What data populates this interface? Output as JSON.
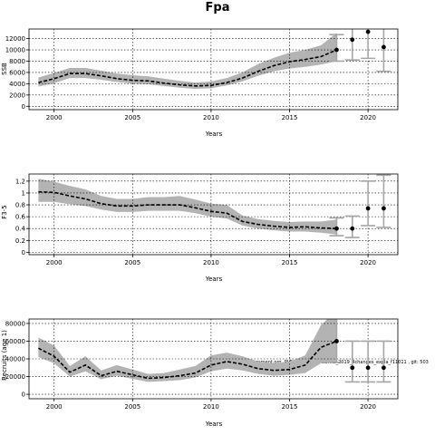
{
  "title": "Fpa",
  "annotation": "stockassessment.org, PLE.27.21-23_WGBFAS_2019_4changes_expla_f11011 , git: 503",
  "colors": {
    "band": "#b3b3b3",
    "line": "#000000",
    "point": "#000000",
    "errorbar": "#a6a6a6",
    "grid": "#000000"
  },
  "chart_data": [
    {
      "type": "line",
      "name": "ssb-panel",
      "ylabel": "SSB",
      "xlabel": "Years",
      "xlim": [
        1998.4,
        2021.9
      ],
      "ylim": [
        -600,
        13700
      ],
      "xticks": [
        2000,
        2005,
        2010,
        2015,
        2020
      ],
      "yticks": [
        0,
        2000,
        4000,
        6000,
        8000,
        10000,
        12000
      ],
      "grid": true,
      "estimate": {
        "x": [
          1999,
          2000,
          2001,
          2002,
          2003,
          2004,
          2005,
          2006,
          2007,
          2008,
          2009,
          2010,
          2011,
          2012,
          2013,
          2014,
          2015,
          2016,
          2017,
          2018
        ],
        "y": [
          4200,
          4900,
          5800,
          5800,
          5400,
          4900,
          4600,
          4500,
          4100,
          3800,
          3600,
          3700,
          4200,
          5000,
          6200,
          7200,
          7900,
          8300,
          8800,
          10000
        ],
        "lower": [
          3500,
          4100,
          5000,
          5000,
          4700,
          4300,
          4000,
          3900,
          3600,
          3300,
          3100,
          3200,
          3700,
          4400,
          5400,
          6200,
          6700,
          7000,
          7400,
          8000
        ],
        "upper": [
          5100,
          5900,
          6800,
          6800,
          6300,
          5800,
          5500,
          5300,
          4900,
          4500,
          4200,
          4400,
          5000,
          6000,
          7500,
          8600,
          9500,
          10000,
          10800,
          13000
        ]
      },
      "forecast": {
        "x": [
          2018,
          2019,
          2020,
          2021
        ],
        "y": [
          10000,
          11800,
          13200,
          10500
        ],
        "lower": [
          8000,
          8200,
          8500,
          6200
        ],
        "upper": [
          12700,
          15500,
          19500,
          17500
        ]
      }
    },
    {
      "type": "line",
      "name": "f-panel",
      "ylabel": "F3-5",
      "xlabel": "Years",
      "xlim": [
        1998.4,
        2021.9
      ],
      "ylim": [
        -0.04,
        1.32
      ],
      "xticks": [
        2000,
        2005,
        2010,
        2015,
        2020
      ],
      "yticks": [
        0.0,
        0.2,
        0.4,
        0.6,
        0.8,
        1.0,
        1.2
      ],
      "grid": true,
      "estimate": {
        "x": [
          1999,
          2000,
          2001,
          2002,
          2003,
          2004,
          2005,
          2006,
          2007,
          2008,
          2009,
          2010,
          2011,
          2012,
          2013,
          2014,
          2015,
          2016,
          2017,
          2018
        ],
        "y": [
          1.02,
          1.01,
          0.95,
          0.9,
          0.82,
          0.78,
          0.78,
          0.8,
          0.8,
          0.8,
          0.75,
          0.69,
          0.66,
          0.52,
          0.47,
          0.44,
          0.42,
          0.43,
          0.41,
          0.4
        ],
        "lower": [
          0.85,
          0.85,
          0.81,
          0.78,
          0.72,
          0.68,
          0.68,
          0.7,
          0.7,
          0.7,
          0.66,
          0.6,
          0.57,
          0.45,
          0.4,
          0.37,
          0.35,
          0.35,
          0.33,
          0.3
        ],
        "upper": [
          1.24,
          1.19,
          1.12,
          1.06,
          0.95,
          0.9,
          0.9,
          0.93,
          0.93,
          0.95,
          0.89,
          0.82,
          0.8,
          0.62,
          0.56,
          0.53,
          0.51,
          0.52,
          0.52,
          0.55
        ]
      },
      "forecast": {
        "x": [
          2018,
          2019,
          2020,
          2021
        ],
        "y": [
          0.4,
          0.4,
          0.74,
          0.74
        ],
        "lower": [
          0.28,
          0.25,
          0.45,
          0.42
        ],
        "upper": [
          0.58,
          0.61,
          1.2,
          1.3
        ]
      }
    },
    {
      "type": "line",
      "name": "recruit-panel",
      "ylabel": "Recruits (age 1)",
      "xlabel": "Years",
      "xlim": [
        1998.4,
        2021.9
      ],
      "ylim": [
        -5000,
        85000
      ],
      "xticks": [
        2000,
        2005,
        2010,
        2015,
        2020
      ],
      "yticks": [
        0,
        20000,
        40000,
        60000,
        80000
      ],
      "grid": true,
      "estimate": {
        "x": [
          1999,
          2000,
          2001,
          2002,
          2003,
          2004,
          2005,
          2006,
          2007,
          2008,
          2009,
          2010,
          2011,
          2012,
          2013,
          2014,
          2015,
          2016,
          2017,
          2018
        ],
        "y": [
          52000,
          43000,
          25000,
          33000,
          21000,
          26000,
          22000,
          18000,
          19000,
          21000,
          24000,
          33000,
          37000,
          34000,
          29000,
          27000,
          28000,
          33000,
          53000,
          60000
        ],
        "lower": [
          42000,
          35000,
          20000,
          26000,
          17000,
          21000,
          17500,
          14000,
          15000,
          16000,
          19000,
          26000,
          29000,
          27000,
          23000,
          21000,
          22000,
          24000,
          35000,
          36000
        ],
        "upper": [
          64000,
          55000,
          32000,
          43000,
          27000,
          33000,
          28000,
          23000,
          24000,
          28000,
          32000,
          44000,
          47000,
          43000,
          37000,
          35000,
          37000,
          44000,
          78000,
          95000
        ]
      },
      "forecast": {
        "x": [
          2018,
          2019,
          2020,
          2021
        ],
        "y": [
          60000,
          30000,
          30000,
          30000
        ],
        "lower": [
          36000,
          14000,
          14000,
          14000
        ],
        "upper": [
          95000,
          60000,
          60000,
          60000
        ]
      }
    }
  ]
}
